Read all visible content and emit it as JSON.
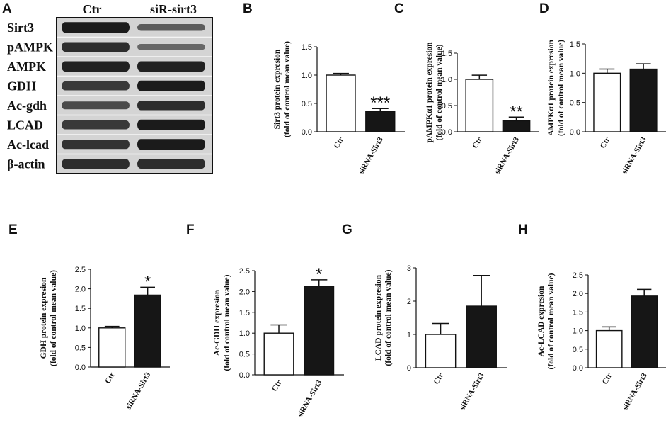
{
  "panel_a": {
    "letter": "A",
    "lanes": [
      "Ctr",
      "siR-sirt3"
    ],
    "rows": [
      {
        "label": "Sirt3",
        "ctr": 1.0,
        "kd": 0.45
      },
      {
        "label": "pAMPK",
        "ctr": 0.85,
        "kd": 0.35
      },
      {
        "label": "AMPK",
        "ctr": 0.95,
        "kd": 0.95
      },
      {
        "label": "GDH",
        "ctr": 0.75,
        "kd": 1.0
      },
      {
        "label": "Ac-gdh",
        "ctr": 0.6,
        "kd": 0.85
      },
      {
        "label": "LCAD",
        "ctr": 0.75,
        "kd": 1.0
      },
      {
        "label": "Ac-lcad",
        "ctr": 0.8,
        "kd": 1.0
      },
      {
        "label": "β-actin",
        "ctr": 0.85,
        "kd": 0.85
      }
    ]
  },
  "chart_data": [
    {
      "letter": "B",
      "type": "bar",
      "categories": [
        "Ctr",
        "siRNA-Sirt3"
      ],
      "values": [
        1.0,
        0.36
      ],
      "errors": [
        0.03,
        0.05
      ],
      "ylabel_lines": [
        "Sirt3 protein expresion",
        "(fold of control mean value)"
      ],
      "ylim": [
        0,
        1.5
      ],
      "yticks": [
        "0.0",
        "0.5",
        "1.0",
        "1.5"
      ],
      "significance": "***"
    },
    {
      "letter": "C",
      "type": "bar",
      "categories": [
        "Ctr",
        "siRNA-Sirt3"
      ],
      "values": [
        1.0,
        0.21
      ],
      "errors": [
        0.08,
        0.07
      ],
      "ylabel_lines": [
        "pAMPKα1 protein expresion",
        "(fold of control mean value)"
      ],
      "ylim": [
        0,
        1.5
      ],
      "yticks": [
        "0.0",
        "0.5",
        "1.0",
        "1.5"
      ],
      "significance": "**"
    },
    {
      "letter": "D",
      "type": "bar",
      "categories": [
        "Ctr",
        "siRNA-Sirt3"
      ],
      "values": [
        1.0,
        1.07
      ],
      "errors": [
        0.07,
        0.09
      ],
      "ylabel_lines": [
        "AMPKα1 protein expresion",
        "(fold of control mean value)"
      ],
      "ylim": [
        0,
        1.5
      ],
      "yticks": [
        "0.0",
        "0.5",
        "1.0",
        "1.5"
      ],
      "significance": ""
    },
    {
      "letter": "E",
      "type": "bar",
      "categories": [
        "Ctr",
        "siRNA-Sirt3"
      ],
      "values": [
        1.0,
        1.84
      ],
      "errors": [
        0.04,
        0.2
      ],
      "ylabel_lines": [
        "GDH protein expresion",
        "(fold of control mean value)"
      ],
      "ylim": [
        0,
        2.5
      ],
      "yticks": [
        "0.0",
        "0.5",
        "1.0",
        "1.5",
        "2.0",
        "2.5"
      ],
      "significance": "*"
    },
    {
      "letter": "F",
      "type": "bar",
      "categories": [
        "Ctr",
        "siRNA-Sirt3"
      ],
      "values": [
        1.0,
        2.13
      ],
      "errors": [
        0.2,
        0.15
      ],
      "ylabel_lines": [
        "Ac-GDH  expresion",
        "(fold of control mean value)"
      ],
      "ylim": [
        0,
        2.5
      ],
      "yticks": [
        "0.0",
        "0.5",
        "1.0",
        "1.5",
        "2.0",
        "2.5"
      ],
      "significance": "*"
    },
    {
      "letter": "G",
      "type": "bar",
      "categories": [
        "Ctr",
        "siRNA-Sirt3"
      ],
      "values": [
        1.0,
        1.85
      ],
      "errors": [
        0.33,
        0.92
      ],
      "ylabel_lines": [
        "LCAD protein expresion",
        "(fold of control mean value)"
      ],
      "ylim": [
        0,
        3
      ],
      "yticks": [
        "0",
        "1",
        "2",
        "3"
      ],
      "significance": ""
    },
    {
      "letter": "H",
      "type": "bar",
      "categories": [
        "Ctr",
        "siRNA-Sirt3"
      ],
      "values": [
        1.0,
        1.93
      ],
      "errors": [
        0.1,
        0.18
      ],
      "ylabel_lines": [
        "Ac-LCAD  expresion",
        "(fold of control mean value)"
      ],
      "ylim": [
        0,
        2.5
      ],
      "yticks": [
        "0.0",
        "0.5",
        "1.0",
        "1.5",
        "2.0",
        "2.5"
      ],
      "significance": ""
    }
  ]
}
